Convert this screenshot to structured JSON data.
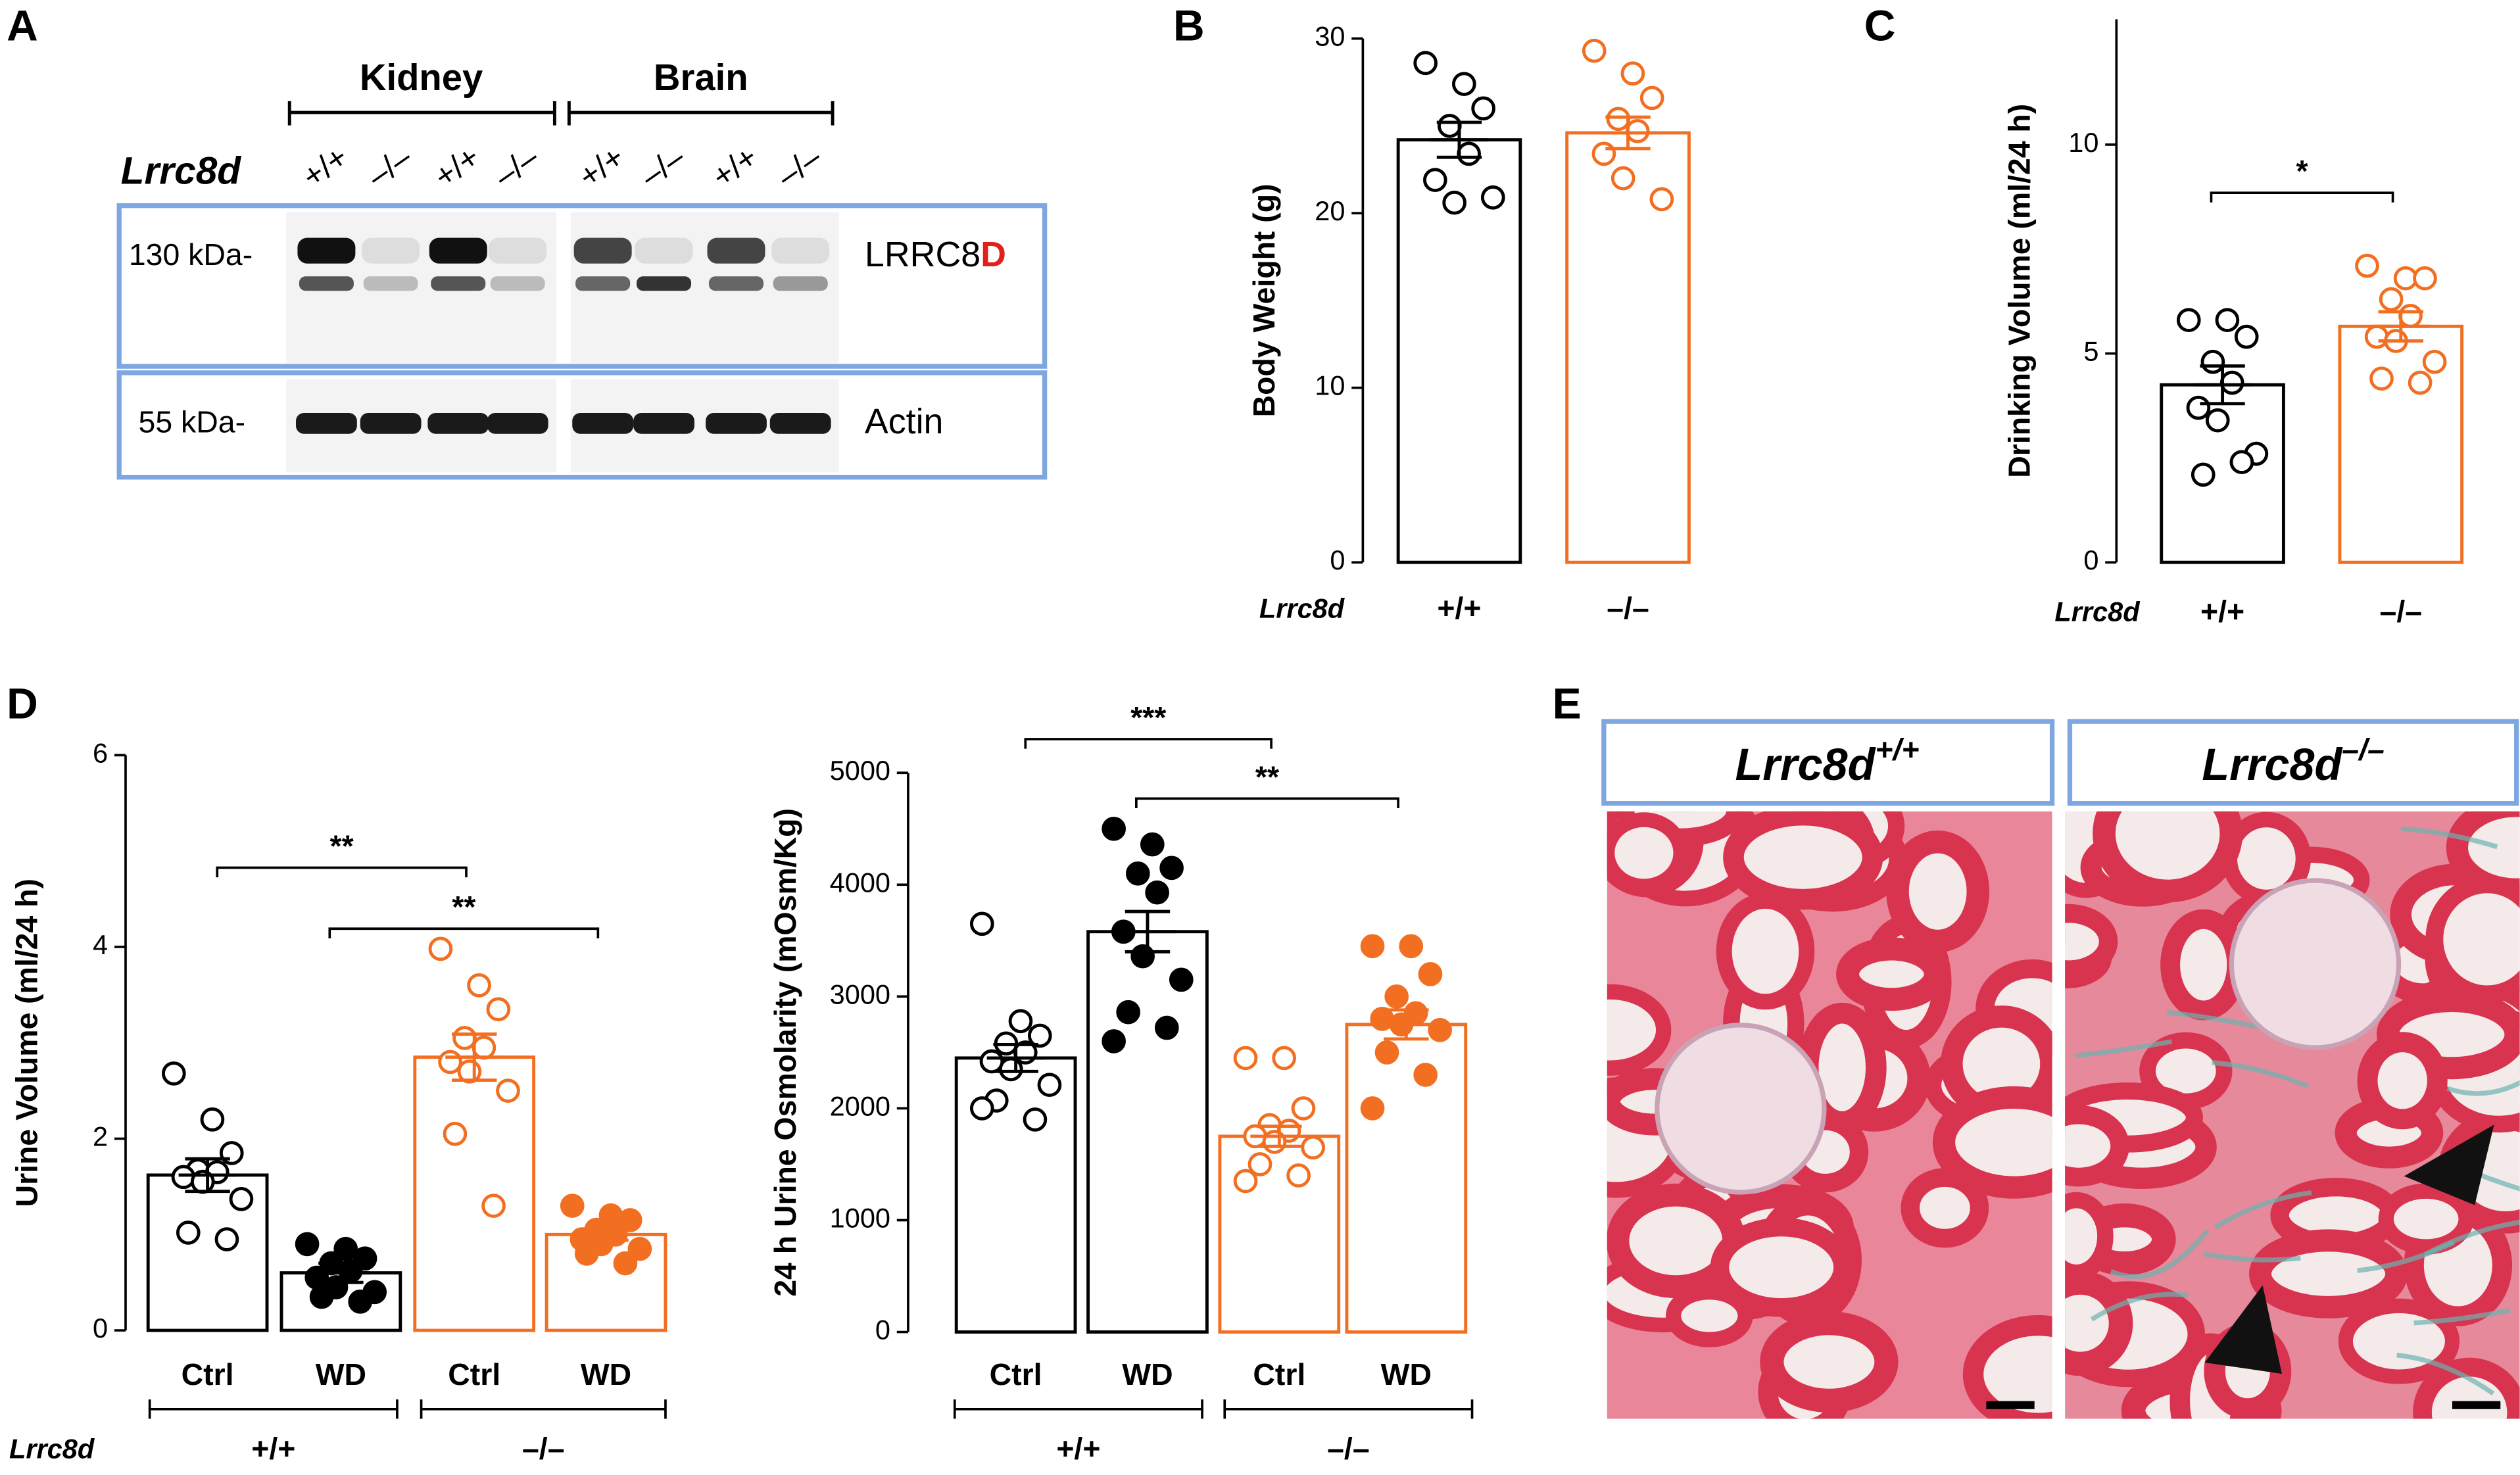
{
  "panel_labels": [
    "A",
    "B",
    "C",
    "D",
    "E"
  ],
  "blot": {
    "tissues": [
      "Kidney",
      "Brain"
    ],
    "gene": "Lrrc8d",
    "genotypes": [
      "+/+",
      "–/–",
      "+/+",
      "–/–",
      "+/+",
      "–/–",
      "+/+",
      "–/–"
    ],
    "rows": [
      {
        "marker": "130 kDa-",
        "protein_parts": [
          "LRRC8",
          "D"
        ]
      },
      {
        "marker": "55 kDa-",
        "protein": "Actin"
      }
    ]
  },
  "histology": {
    "panels": [
      {
        "gene": "Lrrc8d",
        "genotype": "+/+"
      },
      {
        "gene": "Lrrc8d",
        "genotype": "–/–"
      }
    ]
  },
  "chart_data": [
    {
      "type": "bar",
      "ylabel": "Body Weight (g)",
      "xlabel": "Lrrc8d",
      "categories": [
        "+/+",
        "–/–"
      ],
      "values": [
        24.2,
        24.6
      ],
      "errors": [
        1.0,
        0.9
      ],
      "points": [
        [
          28.6,
          27.4,
          26.0,
          25.0,
          23.4,
          21.9,
          20.6,
          20.9
        ],
        [
          29.3,
          28.0,
          26.6,
          25.4,
          24.7,
          23.4,
          22.0,
          20.8
        ]
      ],
      "colors": [
        "#000000",
        "#f26f21"
      ],
      "fills": [
        "#ffffff",
        "#ffffff"
      ],
      "ylim": [
        0,
        30
      ],
      "yticks": [
        0,
        10,
        20,
        30
      ]
    },
    {
      "type": "bar",
      "ylabel": "Drinking Volume (ml/24 h)",
      "xlabel": "Lrrc8d",
      "categories": [
        "+/+",
        "–/–"
      ],
      "values": [
        4.25,
        5.65
      ],
      "errors": [
        0.45,
        0.35
      ],
      "points": [
        [
          5.8,
          5.8,
          5.4,
          4.8,
          4.3,
          3.7,
          3.4,
          2.6,
          2.1,
          2.4
        ],
        [
          7.1,
          6.8,
          6.8,
          6.3,
          5.9,
          5.4,
          5.3,
          4.8,
          4.4,
          4.3
        ]
      ],
      "colors": [
        "#000000",
        "#f26f21"
      ],
      "fills": [
        "#ffffff",
        "#ffffff"
      ],
      "ylim": [
        0,
        13
      ],
      "yticks": [
        0,
        5,
        10
      ],
      "significance": [
        "*"
      ]
    },
    {
      "type": "bar",
      "ylabel": "Urine Volume (ml/24 h)",
      "xlabel": "Lrrc8d",
      "categories": [
        "Ctrl",
        "WD",
        "Ctrl",
        "WD"
      ],
      "groups": [
        "+/+",
        "–/–"
      ],
      "values": [
        1.62,
        0.6,
        2.85,
        1.0
      ],
      "errors": [
        0.17,
        0.1,
        0.24,
        0.06
      ],
      "points": [
        [
          2.68,
          2.2,
          1.85,
          1.67,
          1.65,
          1.6,
          1.55,
          1.37,
          1.02,
          0.95
        ],
        [
          0.9,
          0.85,
          0.75,
          0.7,
          0.62,
          0.55,
          0.45,
          0.4,
          0.35,
          0.3
        ],
        [
          3.98,
          3.6,
          3.35,
          3.05,
          2.95,
          2.8,
          2.7,
          2.5,
          2.05,
          1.3
        ],
        [
          1.3,
          1.2,
          1.15,
          1.05,
          1.0,
          0.95,
          0.9,
          0.85,
          0.8,
          0.7
        ]
      ],
      "colors": [
        "#000000",
        "#000000",
        "#f26f21",
        "#f26f21"
      ],
      "fills": [
        "#ffffff",
        "#000000",
        "#ffffff",
        "#f26f21"
      ],
      "ylim": [
        0,
        6
      ],
      "yticks": [
        0,
        2,
        4,
        6
      ],
      "significance": [
        "**",
        "**"
      ]
    },
    {
      "type": "bar",
      "ylabel": "24 h Urine Osmolarity (mOsm/Kg)",
      "categories": [
        "Ctrl",
        "WD",
        "Ctrl",
        "WD"
      ],
      "groups": [
        "+/+",
        "–/–"
      ],
      "values": [
        2450,
        3580,
        1750,
        2750
      ],
      "errors": [
        120,
        180,
        90,
        130
      ],
      "points": [
        [
          3650,
          2780,
          2650,
          2580,
          2500,
          2420,
          2350,
          2210,
          2070,
          1900,
          2000
        ],
        [
          4500,
          4360,
          4150,
          4100,
          3930,
          3580,
          3360,
          3150,
          2860,
          2720,
          2600
        ],
        [
          2450,
          2450,
          2000,
          1850,
          1800,
          1750,
          1700,
          1650,
          1500,
          1400,
          1350
        ],
        [
          3450,
          3450,
          3200,
          3000,
          2850,
          2800,
          2750,
          2700,
          2500,
          2300,
          2000
        ]
      ],
      "colors": [
        "#000000",
        "#000000",
        "#f26f21",
        "#f26f21"
      ],
      "fills": [
        "#ffffff",
        "#000000",
        "#ffffff",
        "#f26f21"
      ],
      "ylim": [
        0,
        5000
      ],
      "yticks": [
        0,
        1000,
        2000,
        3000,
        4000,
        5000
      ],
      "significance": [
        "***",
        "**"
      ]
    }
  ]
}
